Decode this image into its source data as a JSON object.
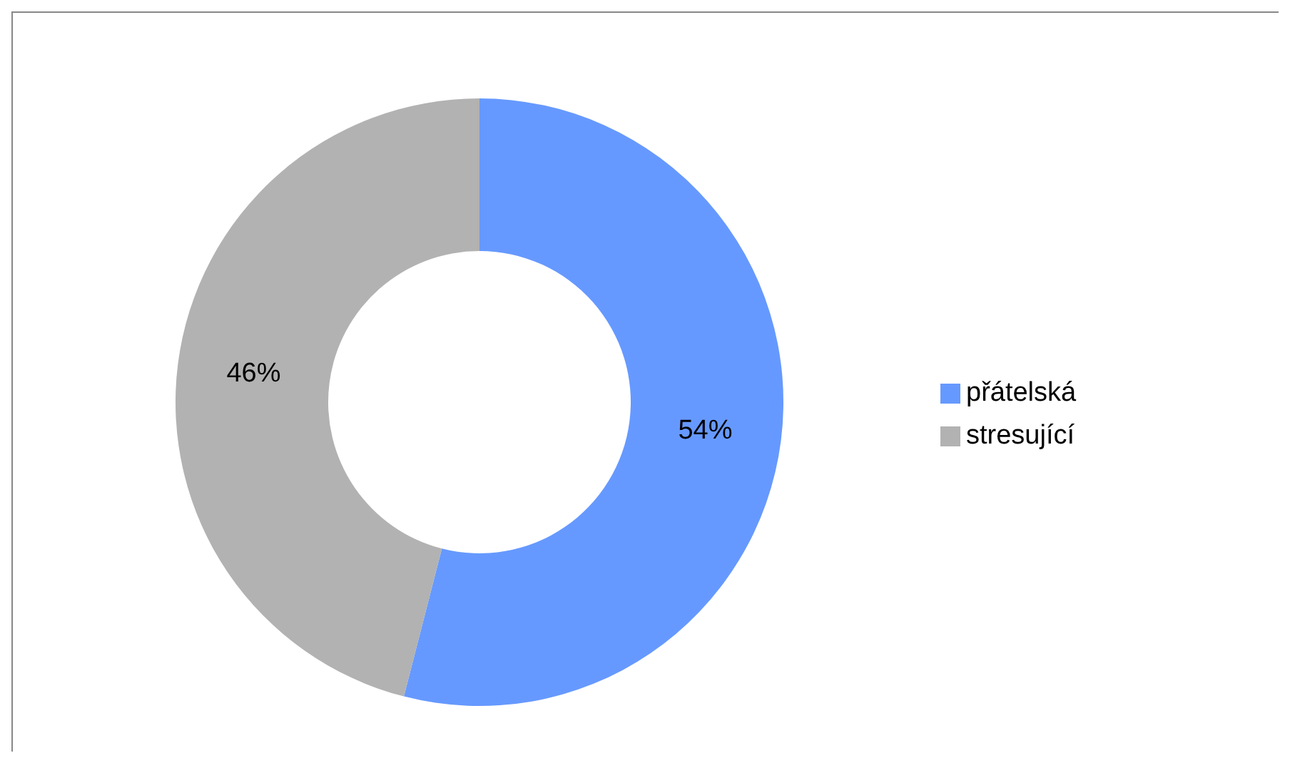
{
  "chart_data": {
    "type": "donut",
    "categories": [
      "přátelská",
      "stresující"
    ],
    "values": [
      54,
      46
    ],
    "colors": [
      "#6699ff",
      "#b2b2b2"
    ],
    "value_labels": [
      "54%",
      "46%"
    ],
    "legend": "right"
  }
}
